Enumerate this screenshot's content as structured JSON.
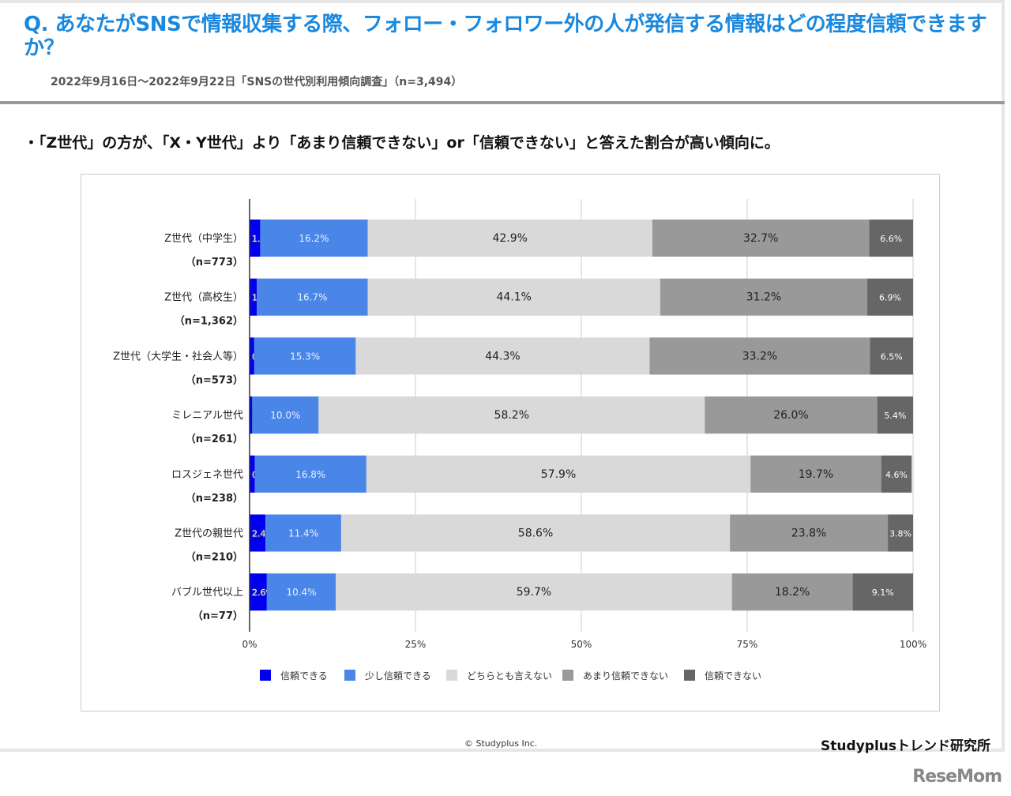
{
  "header": {
    "title": "Q. あなたがSNSで情報収集する際、フォロー・フォロワー外の人が発信する情報はどの程度信頼できますか？",
    "subtitle": "2022年9月16日〜2022年9月22日「SNSの世代別利用傾向調査」（n=3,494）",
    "bullet": "・「Z世代」の方が、「X・Y世代」より「あまり信頼できない」or「信頼できない」と答えた割合が高い傾向に。"
  },
  "footer": {
    "copyright": "© Studyplus Inc.",
    "brand": "Studyplusトレンド研究所",
    "logo": "ReseMom"
  },
  "chart_data": {
    "type": "bar",
    "orientation": "horizontal",
    "stacked": true,
    "categories": [
      {
        "name": "Z世代（中学生）",
        "n": "（n=773）"
      },
      {
        "name": "Z世代（高校生）",
        "n": "（n=1,362）"
      },
      {
        "name": "Z世代（大学生・社会人等）",
        "n": "（n=573）"
      },
      {
        "name": "ミレニアル世代",
        "n": "（n=261）"
      },
      {
        "name": "ロスジェネ世代",
        "n": "（n=238）"
      },
      {
        "name": "Z世代の親世代",
        "n": "（n=210）"
      },
      {
        "name": "バブル世代以上",
        "n": "（n=77）"
      }
    ],
    "series": [
      {
        "name": "信頼できる",
        "color": "#0000ee",
        "values": [
          1.6,
          1.1,
          0.7,
          0.4,
          0.8,
          2.4,
          2.6
        ]
      },
      {
        "name": "少し信頼できる",
        "color": "#4a86e8",
        "values": [
          16.2,
          16.7,
          15.3,
          10.0,
          16.8,
          11.4,
          10.4
        ]
      },
      {
        "name": "どちらとも言えない",
        "color": "#d9d9d9",
        "values": [
          42.9,
          44.1,
          44.3,
          58.2,
          57.9,
          58.6,
          59.7
        ]
      },
      {
        "name": "あまり信頼できない",
        "color": "#999999",
        "values": [
          32.7,
          31.2,
          33.2,
          26.0,
          19.7,
          23.8,
          18.2
        ]
      },
      {
        "name": "信頼できない",
        "color": "#666666",
        "values": [
          6.6,
          6.9,
          6.5,
          5.4,
          4.6,
          3.8,
          9.1
        ]
      }
    ],
    "xlim": [
      0,
      100
    ],
    "xticks": [
      "0%",
      "25%",
      "50%",
      "75%",
      "100%"
    ],
    "grid": true,
    "legend": "bottom"
  }
}
